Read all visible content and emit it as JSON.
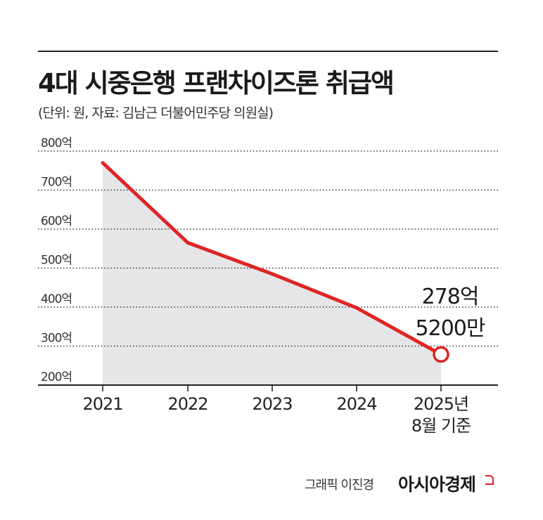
{
  "header": {
    "title": "4대 시중은행 프랜차이즈론 취급액",
    "subtitle": "(단위: 원, 자료: 김남근 더불어민주당 의원실)"
  },
  "footer": {
    "credit": "그래픽 이진경",
    "brand": "아시아경제"
  },
  "colors": {
    "line": "#e02424",
    "area": "#e6e6e9",
    "grid": "#333333"
  },
  "chart_data": {
    "type": "area",
    "categories": [
      "2021",
      "2022",
      "2023",
      "2024",
      "2025년"
    ],
    "category_sublabels": [
      "",
      "",
      "",
      "",
      "8월 기준"
    ],
    "values": [
      770,
      565,
      485,
      398,
      278.52
    ],
    "y_ticks": [
      {
        "value": 800,
        "label": "800억"
      },
      {
        "value": 700,
        "label": "700억"
      },
      {
        "value": 600,
        "label": "600억"
      },
      {
        "value": 500,
        "label": "500억"
      },
      {
        "value": 400,
        "label": "400억"
      },
      {
        "value": 300,
        "label": "300억"
      },
      {
        "value": 200,
        "label": "200억"
      }
    ],
    "ylim": [
      200,
      800
    ],
    "grid": true,
    "annotation": {
      "line1": "278억",
      "line2": "5200만"
    },
    "title": "4대 시중은행 프랜차이즈론 취급액",
    "xlabel": "",
    "ylabel": ""
  }
}
